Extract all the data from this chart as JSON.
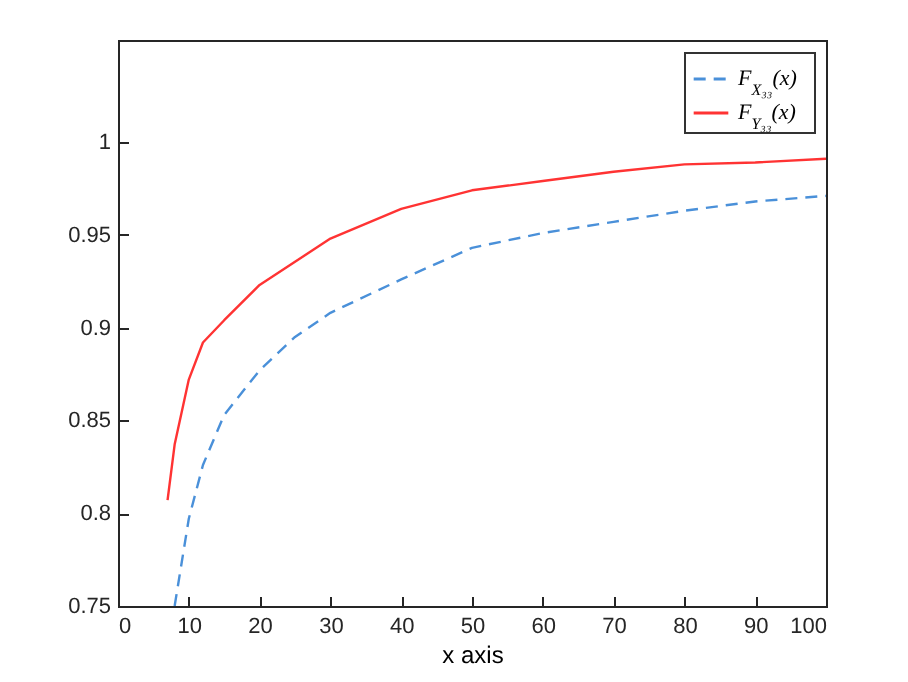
{
  "chart_data": {
    "type": "line",
    "xlabel": "x axis",
    "xlim": [
      0,
      100
    ],
    "xticks": [
      0,
      10,
      20,
      30,
      40,
      50,
      60,
      70,
      80,
      90,
      100
    ],
    "ylim": [
      0.75,
      1.055
    ],
    "yticks": [
      0.75,
      0.8,
      0.85,
      0.9,
      0.95,
      1
    ],
    "grid": false,
    "legend": "top right",
    "marker": "none",
    "series": [
      {
        "name": "F$_{X₃₃}$(x)",
        "color": "#4a90d9",
        "line_style": "dashed",
        "x": [
          8,
          10,
          12,
          15,
          20,
          25,
          30,
          40,
          50,
          60,
          70,
          80,
          90,
          100
        ],
        "values": [
          0.75,
          0.797,
          0.826,
          0.853,
          0.877,
          0.895,
          0.908,
          0.926,
          0.943,
          0.951,
          0.957,
          0.963,
          0.968,
          0.971
        ]
      },
      {
        "name": "F$_{Y₃₃}$(x)",
        "color": "#ff3333",
        "line_style": "solid",
        "x": [
          7,
          8,
          10,
          12,
          15,
          20,
          30,
          40,
          50,
          60,
          70,
          80,
          90,
          100
        ],
        "values": [
          0.807,
          0.837,
          0.872,
          0.892,
          0.904,
          0.923,
          0.948,
          0.964,
          0.974,
          0.979,
          0.984,
          0.988,
          0.989,
          0.991
        ]
      }
    ]
  }
}
